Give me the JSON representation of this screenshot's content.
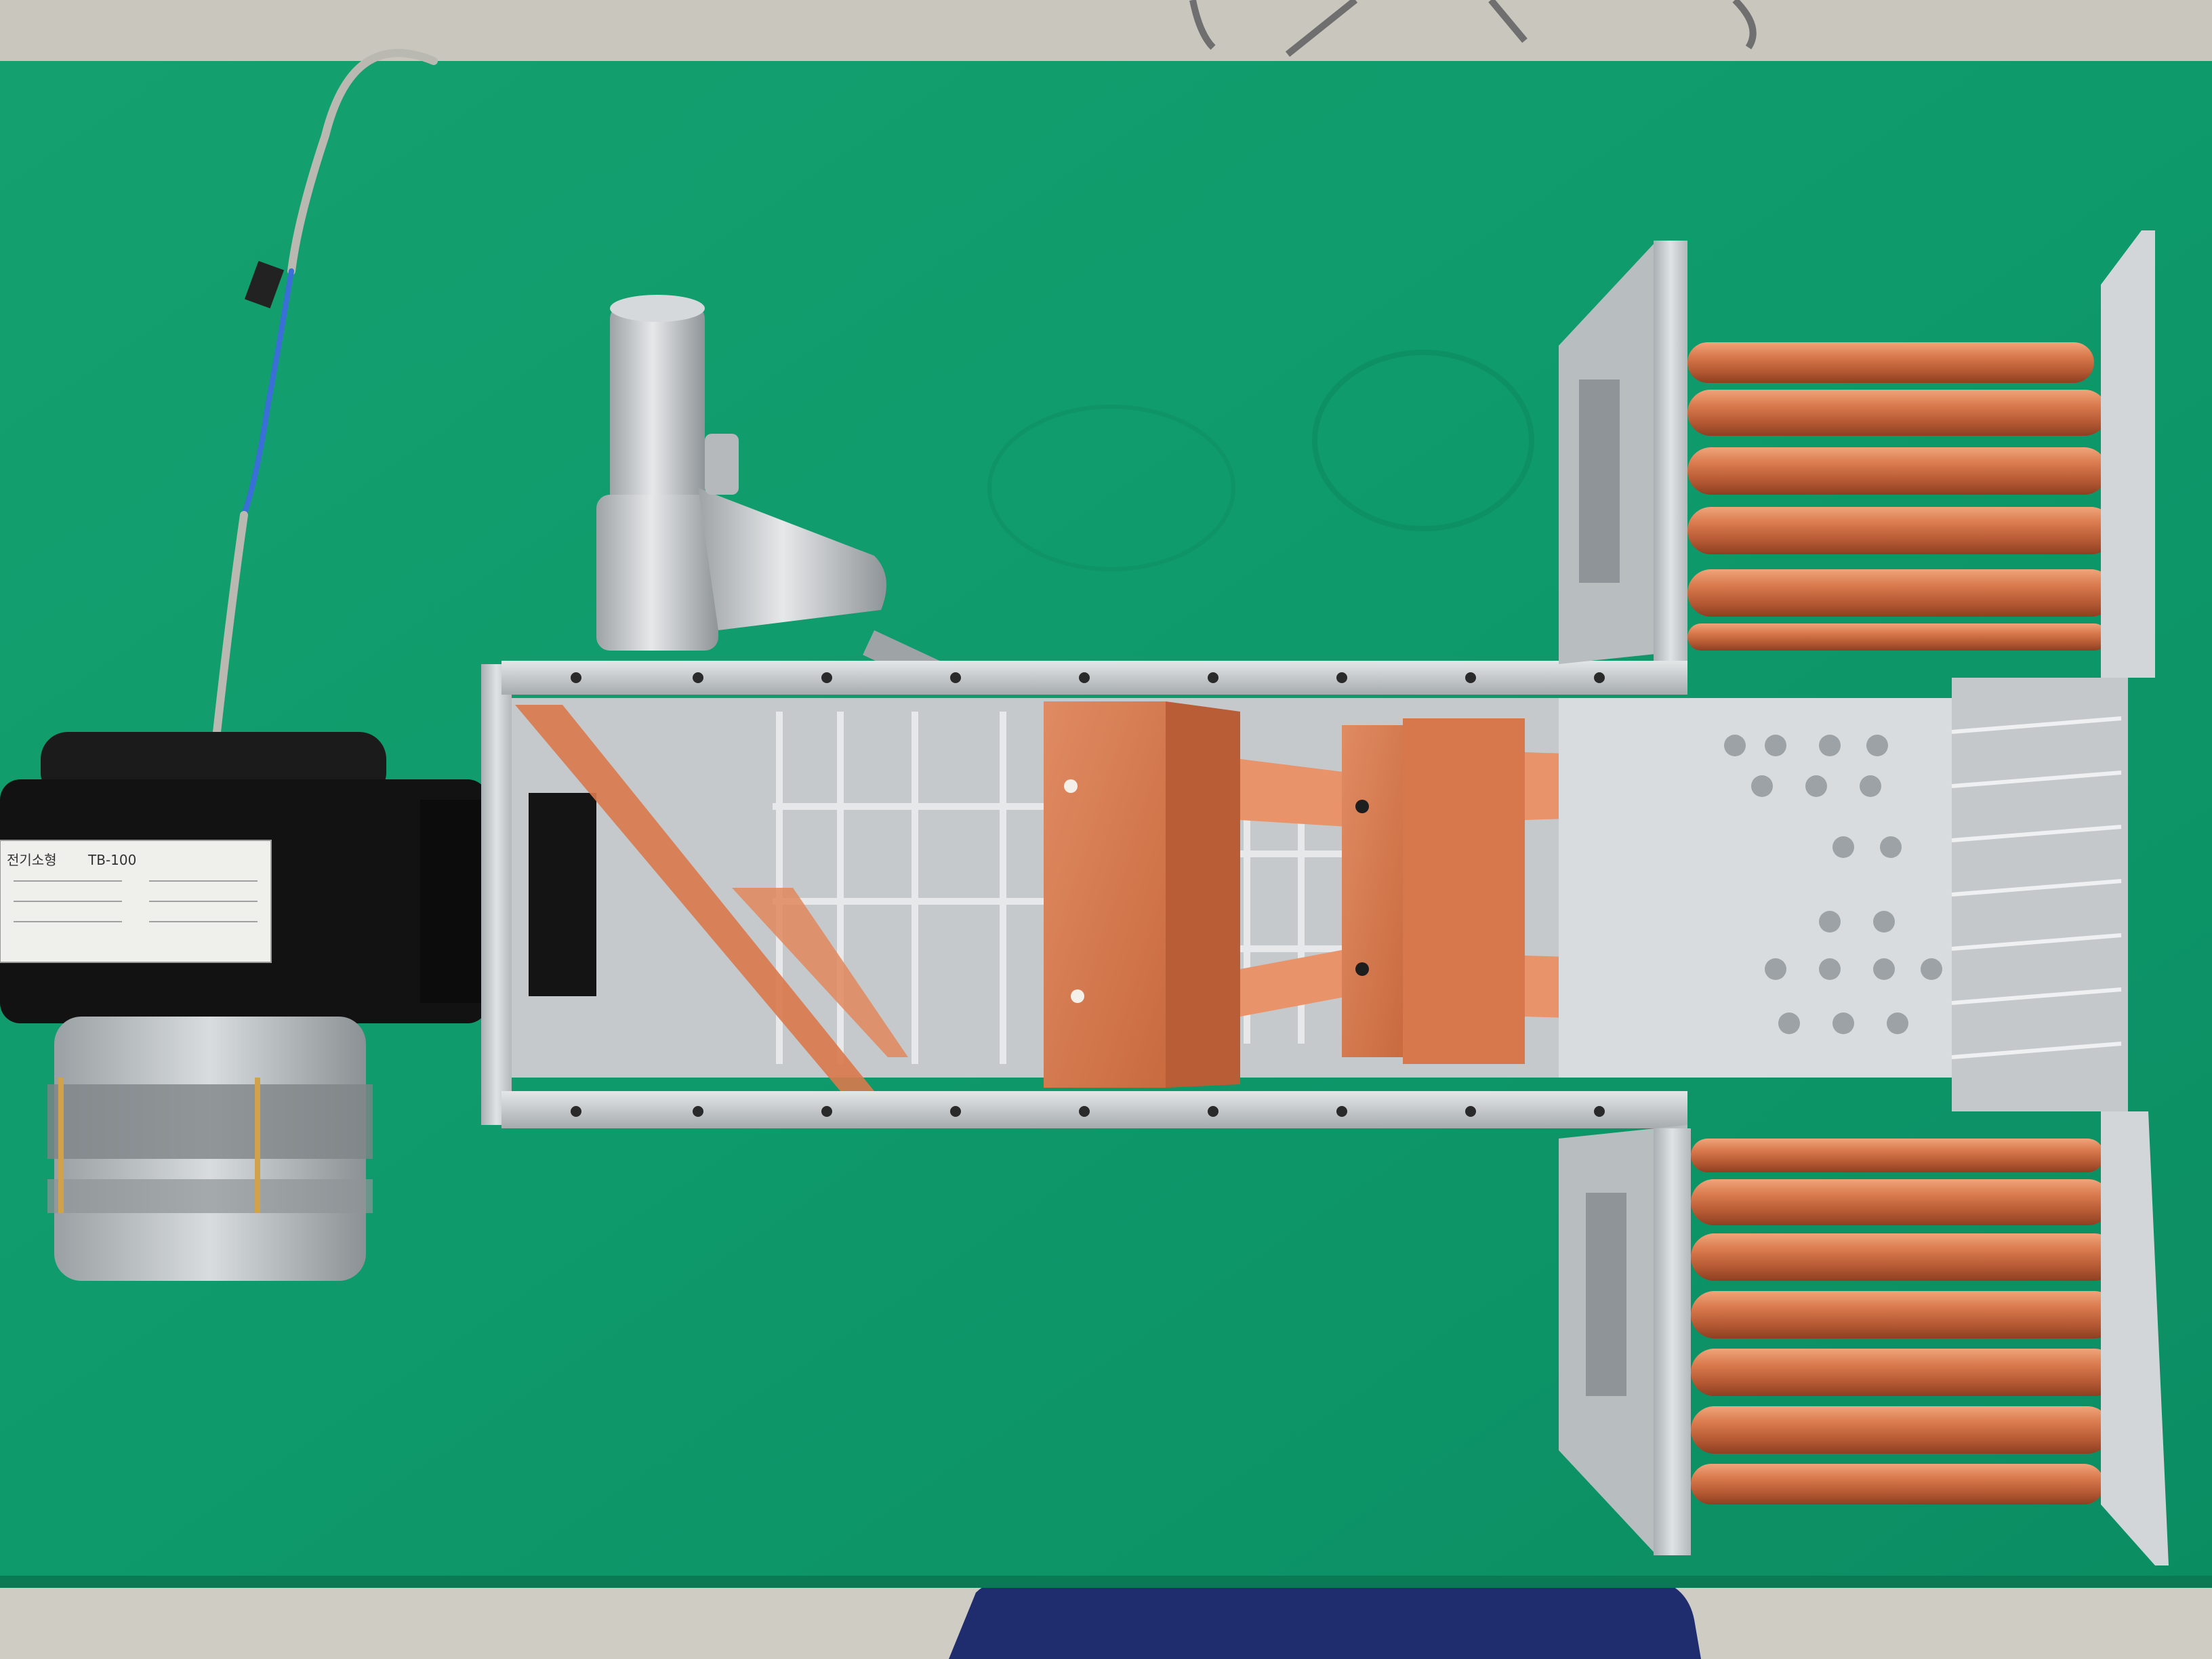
{
  "blower_label": {
    "brand": "전기소형",
    "model": "TB-100"
  },
  "colors": {
    "table_green": "#0f9a6c",
    "copper": "#d9794d",
    "aluminum": "#c9cdd0",
    "blower_black": "#121212",
    "floor": "#c9c6bd"
  }
}
